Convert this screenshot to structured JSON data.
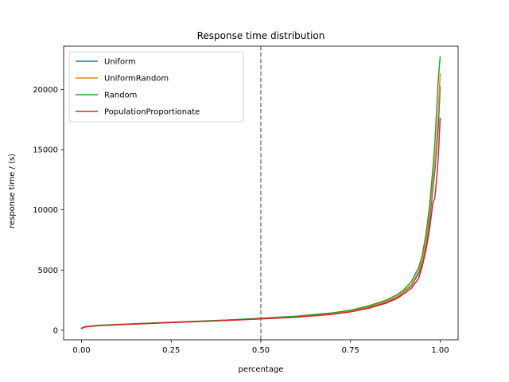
{
  "chart_data": {
    "type": "line",
    "title": "Response time distribution",
    "xlabel": "percentage",
    "ylabel": "response time / (s)",
    "xlim": [
      -0.05,
      1.05
    ],
    "ylim": [
      -800,
      23600
    ],
    "xticks": [
      0.0,
      0.25,
      0.5,
      0.75,
      1.0
    ],
    "xtick_labels": [
      "0.00",
      "0.25",
      "0.50",
      "0.75",
      "1.00"
    ],
    "yticks": [
      0,
      5000,
      10000,
      15000,
      20000
    ],
    "ytick_labels": [
      "0",
      "5000",
      "10000",
      "15000",
      "20000"
    ],
    "grid": false,
    "legend_position": "upper-left",
    "reference_line": {
      "x": 0.5,
      "style": "dashed",
      "color": "#808080"
    },
    "series": [
      {
        "name": "Uniform",
        "color": "#1f77b4",
        "x": [
          0.0,
          0.01,
          0.03,
          0.05,
          0.1,
          0.2,
          0.3,
          0.4,
          0.5,
          0.6,
          0.7,
          0.75,
          0.8,
          0.85,
          0.88,
          0.9,
          0.92,
          0.94,
          0.95,
          0.96,
          0.97,
          0.98,
          0.985,
          0.99,
          0.995,
          1.0
        ],
        "y": [
          150,
          280,
          340,
          390,
          460,
          580,
          700,
          820,
          960,
          1120,
          1380,
          1580,
          1900,
          2350,
          2750,
          3200,
          3700,
          4700,
          5500,
          6900,
          9000,
          11800,
          13200,
          15000,
          17000,
          20200
        ]
      },
      {
        "name": "UniformRandom",
        "color": "#ff7f0e",
        "x": [
          0.0,
          0.01,
          0.03,
          0.05,
          0.1,
          0.2,
          0.3,
          0.4,
          0.5,
          0.6,
          0.7,
          0.75,
          0.8,
          0.85,
          0.88,
          0.9,
          0.92,
          0.94,
          0.95,
          0.96,
          0.97,
          0.98,
          0.985,
          0.99,
          0.995,
          1.0
        ],
        "y": [
          160,
          290,
          345,
          395,
          465,
          590,
          710,
          830,
          970,
          1140,
          1400,
          1610,
          1950,
          2400,
          2800,
          3250,
          3800,
          4900,
          5800,
          7300,
          9500,
          12400,
          13900,
          15800,
          18200,
          21300
        ]
      },
      {
        "name": "Random",
        "color": "#2ca02c",
        "x": [
          0.0,
          0.01,
          0.03,
          0.05,
          0.1,
          0.2,
          0.3,
          0.4,
          0.5,
          0.6,
          0.7,
          0.75,
          0.8,
          0.85,
          0.88,
          0.9,
          0.92,
          0.94,
          0.95,
          0.96,
          0.97,
          0.98,
          0.985,
          0.99,
          0.995,
          1.0
        ],
        "y": [
          170,
          300,
          355,
          405,
          480,
          600,
          720,
          840,
          990,
          1170,
          1440,
          1660,
          2020,
          2500,
          2950,
          3400,
          4050,
          5200,
          6200,
          7900,
          10200,
          13500,
          15500,
          18200,
          21000,
          22700
        ]
      },
      {
        "name": "PopulationProportionate",
        "color": "#d62728",
        "x": [
          0.0,
          0.01,
          0.03,
          0.05,
          0.1,
          0.2,
          0.3,
          0.4,
          0.5,
          0.6,
          0.7,
          0.75,
          0.8,
          0.85,
          0.88,
          0.9,
          0.92,
          0.94,
          0.95,
          0.96,
          0.97,
          0.98,
          0.985,
          0.99,
          0.995,
          1.0
        ],
        "y": [
          140,
          270,
          330,
          380,
          450,
          570,
          690,
          800,
          940,
          1080,
          1320,
          1520,
          1820,
          2250,
          2650,
          3050,
          3500,
          4300,
          5300,
          6600,
          8300,
          10600,
          11000,
          12500,
          14500,
          17600
        ]
      }
    ]
  }
}
